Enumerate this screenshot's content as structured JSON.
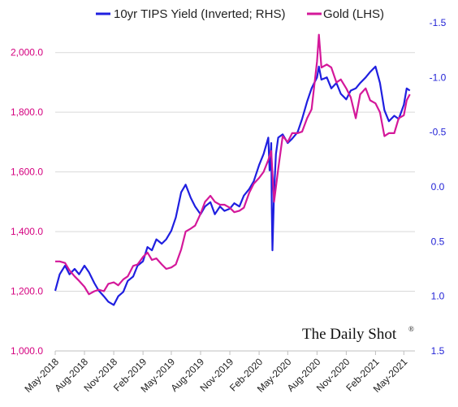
{
  "chart_data": {
    "type": "line",
    "brand": "The Daily Shot",
    "brand_mark": "®",
    "x_ticks": [
      "May-2018",
      "Aug-2018",
      "Nov-2018",
      "Feb-2019",
      "May-2019",
      "Aug-2019",
      "Nov-2019",
      "Feb-2020",
      "May-2020",
      "Aug-2020",
      "Nov-2020",
      "Feb-2021",
      "May-2021"
    ],
    "left_axis": {
      "ticks": [
        "1,000.0",
        "1,200.0",
        "1,400.0",
        "1,600.0",
        "1,800.0",
        "2,000.0"
      ],
      "ylim": [
        1000,
        2100
      ]
    },
    "right_axis": {
      "ticks": [
        "-1.5",
        "-1.0",
        "-0.5",
        "0.0",
        "0.5",
        "1.0",
        "1.5"
      ],
      "ylim": [
        1.5,
        -1.5
      ],
      "inverted": true
    },
    "legend_position": "top",
    "series": [
      {
        "name": "10yr TIPS Yield (Inverted; RHS)",
        "axis": "right",
        "color": "#1f1fe0",
        "x": [
          "2018-05-01",
          "2018-05-15",
          "2018-06-01",
          "2018-06-15",
          "2018-07-01",
          "2018-07-15",
          "2018-08-01",
          "2018-08-15",
          "2018-09-01",
          "2018-09-15",
          "2018-10-01",
          "2018-10-15",
          "2018-11-01",
          "2018-11-15",
          "2018-12-01",
          "2018-12-15",
          "2019-01-01",
          "2019-01-15",
          "2019-02-01",
          "2019-02-15",
          "2019-03-01",
          "2019-03-15",
          "2019-04-01",
          "2019-04-15",
          "2019-05-01",
          "2019-05-15",
          "2019-06-01",
          "2019-06-15",
          "2019-07-01",
          "2019-07-15",
          "2019-08-01",
          "2019-08-15",
          "2019-09-01",
          "2019-09-15",
          "2019-10-01",
          "2019-10-15",
          "2019-11-01",
          "2019-11-15",
          "2019-12-01",
          "2019-12-15",
          "2020-01-01",
          "2020-01-15",
          "2020-02-01",
          "2020-02-15",
          "2020-03-01",
          "2020-03-05",
          "2020-03-10",
          "2020-03-12",
          "2020-03-14",
          "2020-03-19",
          "2020-03-25",
          "2020-04-01",
          "2020-04-15",
          "2020-05-01",
          "2020-05-15",
          "2020-06-01",
          "2020-06-15",
          "2020-07-01",
          "2020-07-15",
          "2020-08-01",
          "2020-08-07",
          "2020-08-15",
          "2020-09-01",
          "2020-09-15",
          "2020-10-01",
          "2020-10-15",
          "2020-11-01",
          "2020-11-15",
          "2020-12-01",
          "2020-12-15",
          "2021-01-01",
          "2021-01-15",
          "2021-02-01",
          "2021-02-15",
          "2021-03-01",
          "2021-03-15",
          "2021-04-01",
          "2021-04-15",
          "2021-05-01",
          "2021-05-10",
          "2021-05-20"
        ],
        "values": [
          0.95,
          0.8,
          0.72,
          0.8,
          0.75,
          0.8,
          0.72,
          0.78,
          0.88,
          0.95,
          1.0,
          1.05,
          1.08,
          1.0,
          0.96,
          0.86,
          0.82,
          0.72,
          0.68,
          0.55,
          0.58,
          0.48,
          0.52,
          0.48,
          0.4,
          0.28,
          0.05,
          -0.02,
          0.1,
          0.18,
          0.25,
          0.18,
          0.14,
          0.25,
          0.18,
          0.22,
          0.2,
          0.15,
          0.18,
          0.08,
          0.02,
          -0.05,
          -0.2,
          -0.3,
          -0.45,
          -0.15,
          -0.4,
          0.2,
          0.58,
          0.05,
          -0.3,
          -0.45,
          -0.48,
          -0.4,
          -0.44,
          -0.5,
          -0.62,
          -0.78,
          -0.9,
          -1.0,
          -1.1,
          -0.98,
          -1.0,
          -0.9,
          -0.95,
          -0.85,
          -0.8,
          -0.88,
          -0.9,
          -0.95,
          -1.0,
          -1.05,
          -1.1,
          -0.95,
          -0.7,
          -0.6,
          -0.65,
          -0.62,
          -0.75,
          -0.9,
          -0.88
        ]
      },
      {
        "name": "Gold (LHS)",
        "axis": "left",
        "color": "#d4189a",
        "x": [
          "2018-05-01",
          "2018-05-15",
          "2018-06-01",
          "2018-06-15",
          "2018-07-01",
          "2018-07-15",
          "2018-08-01",
          "2018-08-15",
          "2018-09-01",
          "2018-09-15",
          "2018-10-01",
          "2018-10-15",
          "2018-11-01",
          "2018-11-15",
          "2018-12-01",
          "2018-12-15",
          "2019-01-01",
          "2019-01-15",
          "2019-02-01",
          "2019-02-15",
          "2019-03-01",
          "2019-03-15",
          "2019-04-01",
          "2019-04-15",
          "2019-05-01",
          "2019-05-15",
          "2019-06-01",
          "2019-06-15",
          "2019-07-01",
          "2019-07-15",
          "2019-08-01",
          "2019-08-15",
          "2019-09-01",
          "2019-09-15",
          "2019-10-01",
          "2019-10-15",
          "2019-11-01",
          "2019-11-15",
          "2019-12-01",
          "2019-12-15",
          "2020-01-01",
          "2020-01-15",
          "2020-02-01",
          "2020-02-15",
          "2020-03-01",
          "2020-03-10",
          "2020-03-19",
          "2020-04-01",
          "2020-04-15",
          "2020-05-01",
          "2020-05-15",
          "2020-06-01",
          "2020-06-15",
          "2020-07-01",
          "2020-07-15",
          "2020-08-01",
          "2020-08-07",
          "2020-08-15",
          "2020-09-01",
          "2020-09-15",
          "2020-10-01",
          "2020-10-15",
          "2020-11-01",
          "2020-11-15",
          "2020-12-01",
          "2020-12-15",
          "2021-01-01",
          "2021-01-15",
          "2021-02-01",
          "2021-02-15",
          "2021-03-01",
          "2021-03-15",
          "2021-04-01",
          "2021-04-15",
          "2021-05-01",
          "2021-05-10",
          "2021-05-20"
        ],
        "values": [
          1300,
          1300,
          1295,
          1270,
          1250,
          1235,
          1215,
          1190,
          1200,
          1205,
          1200,
          1225,
          1230,
          1220,
          1240,
          1250,
          1285,
          1290,
          1315,
          1330,
          1305,
          1310,
          1290,
          1275,
          1280,
          1290,
          1340,
          1400,
          1410,
          1420,
          1460,
          1500,
          1520,
          1500,
          1490,
          1490,
          1480,
          1465,
          1470,
          1480,
          1530,
          1560,
          1580,
          1600,
          1640,
          1670,
          1500,
          1610,
          1720,
          1700,
          1730,
          1730,
          1735,
          1780,
          1810,
          1970,
          2060,
          1950,
          1960,
          1950,
          1900,
          1910,
          1880,
          1850,
          1780,
          1860,
          1880,
          1840,
          1830,
          1800,
          1720,
          1730,
          1730,
          1780,
          1790,
          1840,
          1860
        ]
      }
    ]
  }
}
